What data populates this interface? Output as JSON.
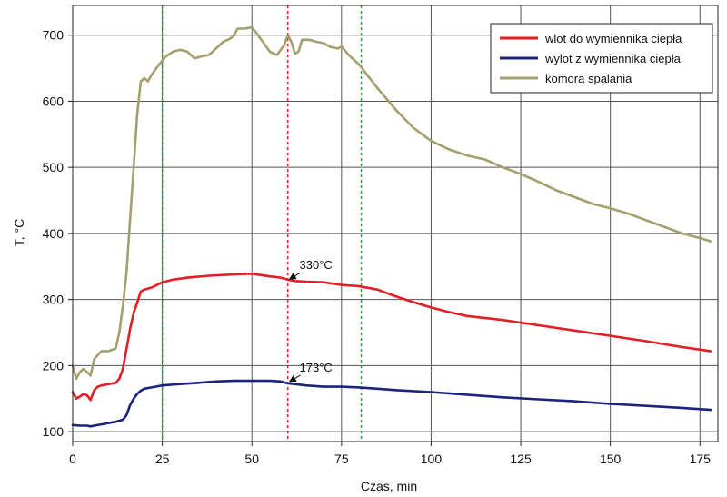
{
  "chart_data": {
    "type": "line",
    "xlabel": "Czas, min",
    "ylabel": "T, °C",
    "xlim": [
      0,
      180
    ],
    "ylim": [
      85,
      745
    ],
    "xticks": [
      0,
      25,
      50,
      75,
      100,
      125,
      150,
      175
    ],
    "yticks": [
      100,
      200,
      300,
      400,
      500,
      600,
      700
    ],
    "grid": true,
    "legend_position": "top-right",
    "series": [
      {
        "name": "wlot do wymiennika ciepła",
        "color": "#e31e24",
        "x": [
          0,
          1,
          2,
          3,
          4,
          5,
          6,
          7,
          8,
          10,
          12,
          13,
          14,
          15,
          16,
          17,
          18,
          19,
          20,
          22,
          25,
          28,
          32,
          38,
          45,
          50,
          55,
          58,
          60,
          62,
          65,
          70,
          75,
          80,
          85,
          90,
          95,
          100,
          105,
          110,
          120,
          130,
          140,
          150,
          160,
          170,
          178
        ],
        "y": [
          160,
          150,
          153,
          157,
          155,
          148,
          163,
          168,
          170,
          172,
          174,
          180,
          195,
          225,
          255,
          280,
          295,
          312,
          315,
          318,
          326,
          330,
          333,
          336,
          338,
          339,
          335,
          333,
          330,
          328,
          327,
          326,
          322,
          320,
          315,
          305,
          296,
          288,
          281,
          275,
          269,
          261,
          253,
          245,
          237,
          228,
          222
        ]
      },
      {
        "name": "wylot z wymiennika ciepła",
        "color": "#1a237e",
        "x": [
          0,
          2,
          4,
          5,
          6,
          8,
          10,
          12,
          14,
          15,
          16,
          17,
          18,
          19,
          20,
          22,
          25,
          30,
          35,
          40,
          45,
          50,
          55,
          58,
          60,
          62,
          65,
          70,
          75,
          80,
          85,
          90,
          100,
          110,
          120,
          130,
          140,
          150,
          160,
          170,
          178
        ],
        "y": [
          110,
          109,
          109,
          108,
          109,
          111,
          113,
          115,
          118,
          125,
          140,
          150,
          157,
          162,
          165,
          167,
          170,
          172,
          174,
          176,
          177,
          177,
          177,
          176,
          173,
          172,
          170,
          168,
          168,
          167,
          165,
          163,
          160,
          156,
          152,
          149,
          146,
          142,
          139,
          136,
          133
        ]
      },
      {
        "name": "komora spalania",
        "color": "#a59f6e",
        "x": [
          0,
          1,
          2,
          3,
          4,
          5,
          6,
          8,
          10,
          12,
          13,
          14,
          15,
          16,
          17,
          18,
          19,
          20,
          21,
          22,
          24,
          26,
          28,
          30,
          32,
          34,
          36,
          38,
          40,
          42,
          44,
          45,
          46,
          48,
          50,
          51,
          53,
          55,
          57,
          59,
          60,
          61,
          62,
          63,
          64,
          66,
          68,
          70,
          72,
          74,
          75,
          77,
          80,
          85,
          90,
          95,
          100,
          105,
          110,
          115,
          120,
          125,
          130,
          135,
          140,
          145,
          150,
          155,
          160,
          165,
          170,
          175,
          178
        ],
        "y": [
          200,
          180,
          190,
          195,
          190,
          185,
          210,
          222,
          222,
          226,
          250,
          290,
          340,
          420,
          500,
          580,
          630,
          635,
          630,
          640,
          655,
          668,
          675,
          678,
          675,
          665,
          668,
          670,
          680,
          690,
          695,
          700,
          710,
          710,
          712,
          705,
          690,
          675,
          670,
          685,
          700,
          690,
          672,
          675,
          693,
          693,
          690,
          688,
          682,
          680,
          683,
          670,
          655,
          620,
          588,
          560,
          540,
          527,
          518,
          512,
          500,
          490,
          478,
          465,
          455,
          445,
          438,
          430,
          420,
          410,
          400,
          393,
          388
        ]
      }
    ],
    "reference_lines": [
      {
        "x": 25,
        "color": "#2e9e3e"
      },
      {
        "x": 60,
        "color": "#e31e24"
      },
      {
        "x": 80.5,
        "color": "#2e9e3e"
      }
    ],
    "annotations": [
      {
        "text": "330°C",
        "point_x": 60,
        "point_y": 328,
        "text_x": 63,
        "text_y": 346
      },
      {
        "text": "173°C",
        "point_x": 60,
        "point_y": 173,
        "text_x": 63,
        "text_y": 191
      }
    ]
  }
}
